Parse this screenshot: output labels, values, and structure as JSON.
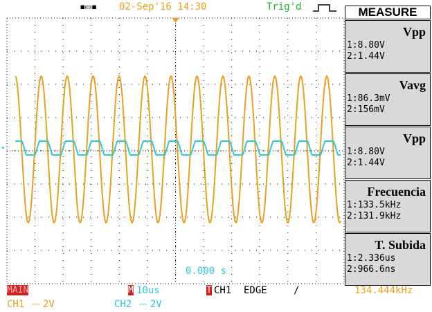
{
  "top_bar": {
    "datetime": "02-Sep'16 14:30",
    "trigger_status": "Trig'd"
  },
  "measure": {
    "header": "MEASURE",
    "items": [
      {
        "title": "Vpp",
        "ch1": "1:8.80V",
        "ch2": "2:1.44V"
      },
      {
        "title": "Vavg",
        "ch1": "1:86.3mV",
        "ch2": "2:156mV"
      },
      {
        "title": "Vpp",
        "ch1": "1:8.80V",
        "ch2": "2:1.44V"
      },
      {
        "title": "Frecuencia",
        "ch1": "1:133.5kHz",
        "ch2": "2:131.9kHz"
      },
      {
        "title": "T. Subida",
        "ch1": "1:2.336us",
        "ch2": "2:966.6ns"
      }
    ]
  },
  "screen": {
    "time_offset": "0.000 s"
  },
  "status": {
    "mode": "MAIN",
    "timebase_marker": "M",
    "timebase": "10us",
    "trigger_marker": "T",
    "trigger_source": "CH1",
    "trigger_type": "EDGE",
    "frequency": "134.444kHz",
    "ch1_label": "CH1",
    "ch1_scale": "2V",
    "ch2_label": "CH2",
    "ch2_scale": "2V"
  }
}
